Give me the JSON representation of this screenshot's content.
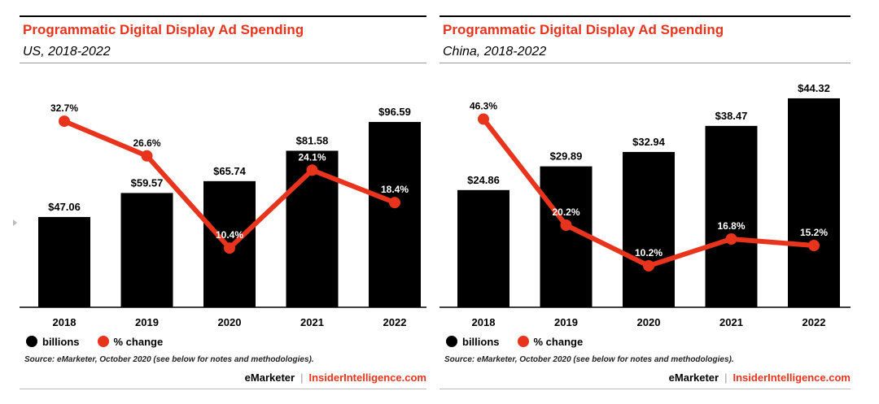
{
  "colors": {
    "bar": "#000000",
    "line": "#e8341c",
    "accent": "#e8341c",
    "axis": "#000000"
  },
  "panels": [
    {
      "title": "Programmatic Digital Display Ad Spending",
      "subtitle": "US, 2018-2022",
      "legend": {
        "bars": "billions",
        "line": "% change"
      },
      "source": "Source: eMarketer, October 2020 (see below for notes and methodologies).",
      "credits": {
        "brand": "eMarketer",
        "separator": "|",
        "site": "InsiderIntelligence.com"
      }
    },
    {
      "title": "Programmatic Digital Display Ad Spending",
      "subtitle": "China, 2018-2022",
      "legend": {
        "bars": "billions",
        "line": "% change"
      },
      "source": "Source: eMarketer, October 2020 (see below for notes and methodologies).",
      "credits": {
        "brand": "eMarketer",
        "separator": "|",
        "site": "InsiderIntelligence.com"
      }
    }
  ],
  "chart_data": [
    {
      "type": "bar",
      "title": "Programmatic Digital Display Ad Spending",
      "subtitle": "US, 2018-2022",
      "categories": [
        "2018",
        "2019",
        "2020",
        "2021",
        "2022"
      ],
      "series": [
        {
          "name": "billions",
          "values": [
            47.06,
            59.57,
            65.74,
            81.58,
            96.59
          ],
          "labels": [
            "$47.06",
            "$59.57",
            "$65.74",
            "$81.58",
            "$96.59"
          ]
        },
        {
          "name": "% change",
          "type": "line",
          "values": [
            32.7,
            26.6,
            10.4,
            24.1,
            18.4
          ],
          "labels": [
            "32.7%",
            "26.6%",
            "10.4%",
            "24.1%",
            "18.4%"
          ]
        }
      ],
      "ylim": [
        0,
        100
      ],
      "line_ylim": [
        0,
        40
      ],
      "grid": false,
      "legend_position": "bottom-left"
    },
    {
      "type": "bar",
      "title": "Programmatic Digital Display Ad Spending",
      "subtitle": "China, 2018-2022",
      "categories": [
        "2018",
        "2019",
        "2020",
        "2021",
        "2022"
      ],
      "series": [
        {
          "name": "billions",
          "values": [
            24.86,
            29.89,
            32.94,
            38.47,
            44.32
          ],
          "labels": [
            "$24.86",
            "$29.89",
            "$32.94",
            "$38.47",
            "$44.32"
          ]
        },
        {
          "name": "% change",
          "type": "line",
          "values": [
            46.3,
            20.2,
            10.2,
            16.8,
            15.2
          ],
          "labels": [
            "46.3%",
            "20.2%",
            "10.2%",
            "16.8%",
            "15.2%"
          ]
        }
      ],
      "ylim": [
        0,
        45
      ],
      "line_ylim": [
        0,
        56
      ],
      "grid": false,
      "legend_position": "bottom-left"
    }
  ]
}
